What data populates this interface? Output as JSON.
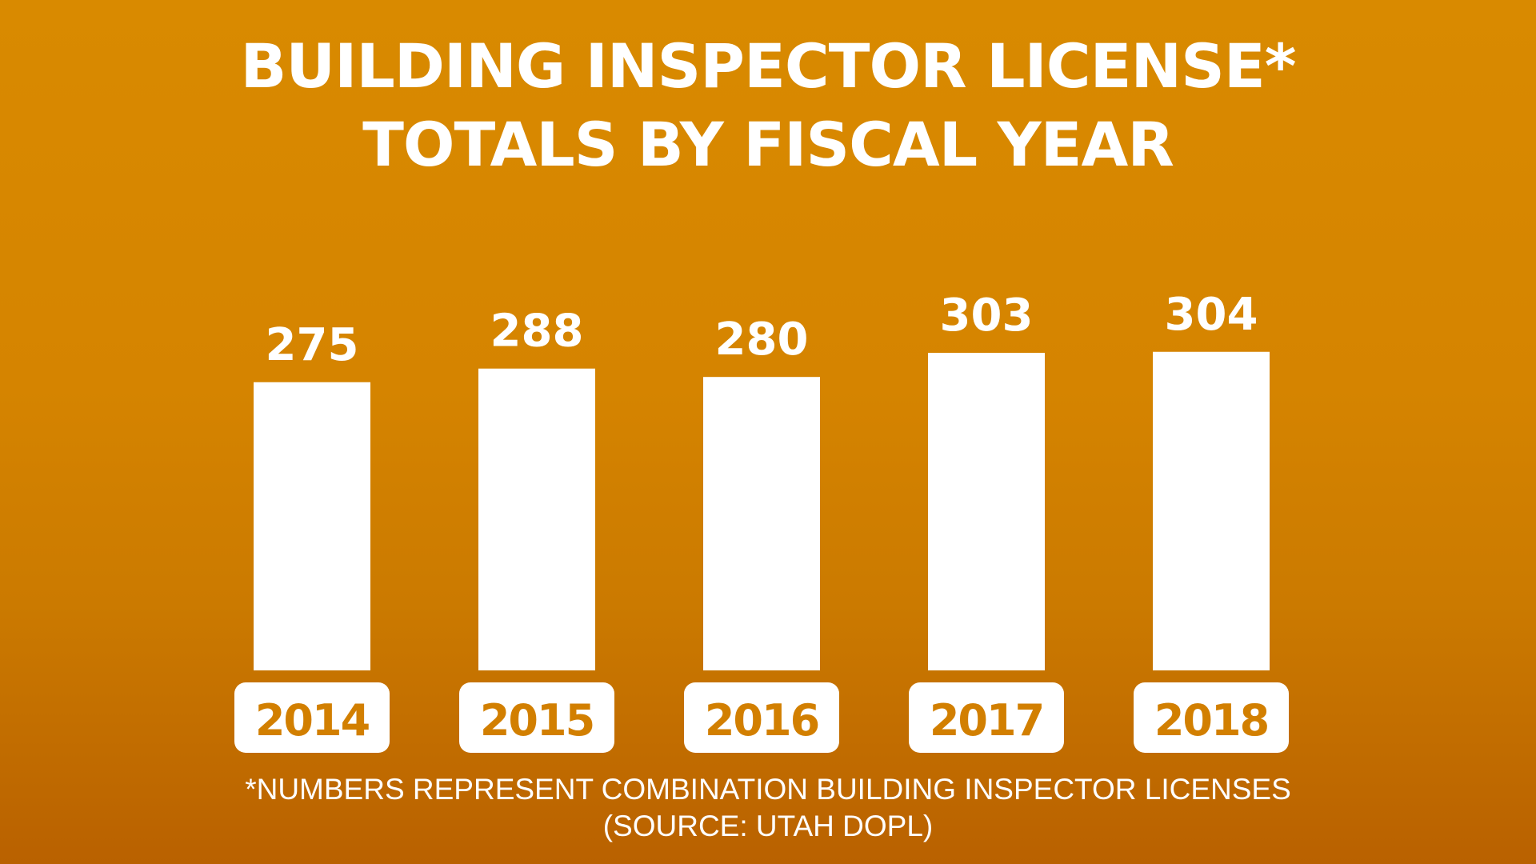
{
  "chart_data": {
    "type": "bar",
    "title": "BUILDING INSPECTOR LICENSE*",
    "subtitle": "TOTALS BY FISCAL YEAR",
    "categories": [
      "2014",
      "2015",
      "2016",
      "2017",
      "2018"
    ],
    "values": [
      275,
      288,
      280,
      303,
      304
    ],
    "xlabel": "",
    "ylabel": "",
    "ylim": [
      0,
      320
    ],
    "grid": false,
    "legend": "none",
    "data_labels": true,
    "bar_color": "#ffffff",
    "background_color": "#d58400",
    "footnote": "*NUMBERS REPRESENT COMBINATION BUILDING INSPECTOR LICENSES",
    "source": "(SOURCE: UTAH DOPL)"
  }
}
